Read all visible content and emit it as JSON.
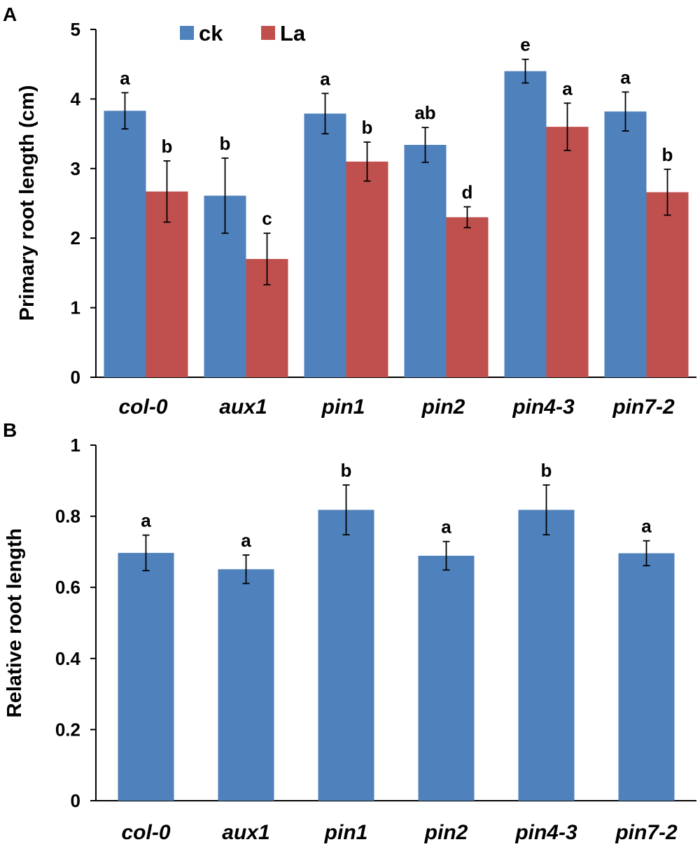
{
  "chart_data": [
    {
      "panel": "A",
      "type": "bar",
      "ylabel": "Primary root length (cm)",
      "xlabel": "",
      "ylim": [
        0,
        5
      ],
      "yticks": [
        "0",
        "1",
        "2",
        "3",
        "4",
        "5"
      ],
      "categories": [
        "col-0",
        "aux1",
        "pin1",
        "pin2",
        "pin4-3",
        "pin7-2"
      ],
      "legend_position": "top-left",
      "series": [
        {
          "name": "ck",
          "color": "#4f81bd",
          "values": [
            3.83,
            2.61,
            3.79,
            3.34,
            4.4,
            3.82
          ],
          "errors": [
            0.26,
            0.54,
            0.29,
            0.25,
            0.17,
            0.28
          ],
          "significance": [
            "a",
            "b",
            "a",
            "ab",
            "e",
            "a"
          ]
        },
        {
          "name": "La",
          "color": "#c0504d",
          "values": [
            2.67,
            1.7,
            3.1,
            2.3,
            3.6,
            2.66
          ],
          "errors": [
            0.44,
            0.37,
            0.28,
            0.15,
            0.34,
            0.33
          ],
          "significance": [
            "b",
            "c",
            "b",
            "d",
            "a",
            "b"
          ]
        }
      ]
    },
    {
      "panel": "B",
      "type": "bar",
      "ylabel": "Relative root length",
      "xlabel": "",
      "ylim": [
        0,
        1
      ],
      "yticks": [
        "0",
        "0.2",
        "0.4",
        "0.6",
        "0.8",
        "1"
      ],
      "categories": [
        "col-0",
        "aux1",
        "pin1",
        "pin2",
        "pin4-3",
        "pin7-2"
      ],
      "series": [
        {
          "name": "Relative root length",
          "color": "#4f81bd",
          "values": [
            0.697,
            0.651,
            0.818,
            0.689,
            0.818,
            0.696
          ],
          "errors": [
            0.05,
            0.04,
            0.07,
            0.04,
            0.07,
            0.035
          ],
          "significance": [
            "a",
            "a",
            "b",
            "a",
            "b",
            "a"
          ]
        }
      ]
    }
  ]
}
